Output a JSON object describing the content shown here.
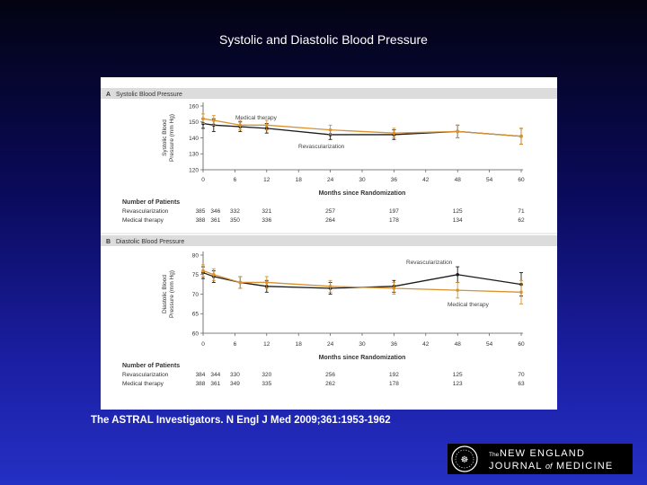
{
  "slide": {
    "title": "Systolic and Diastolic Blood Pressure",
    "citation": "The ASTRAL Investigators. N Engl J Med 2009;361:1953-1962",
    "logo": {
      "the": "The",
      "line1": "NEW ENGLAND",
      "line2_a": "JOURNAL",
      "line2_of": "of",
      "line2_b": "MEDICINE"
    }
  },
  "colors": {
    "revascularization": "#1a1a1a",
    "medical": "#d9922e",
    "panel_header": "#dcdcdc"
  },
  "chart_data": [
    {
      "type": "line",
      "panel_letter": "A",
      "title": "Systolic Blood Pressure",
      "ylabel_line1": "Systolic Blood",
      "ylabel_line2": "Pressure (mm Hg)",
      "xlabel": "Months since Randomization",
      "xlim": [
        0,
        60
      ],
      "ylim": [
        120,
        160
      ],
      "x_ticks": [
        "0",
        "6",
        "12",
        "18",
        "24",
        "30",
        "36",
        "42",
        "48",
        "54",
        "60"
      ],
      "y_ticks": [
        "120",
        "130",
        "140",
        "150",
        "160"
      ],
      "series": [
        {
          "name": "Revascularization",
          "color_key": "revascularization",
          "x": [
            0,
            2,
            7,
            12,
            24,
            36,
            48,
            60
          ],
          "y": [
            149,
            148,
            147,
            146,
            142,
            142,
            144,
            141
          ],
          "err": [
            3,
            4,
            3,
            3,
            3,
            3,
            4,
            5
          ]
        },
        {
          "name": "Medical therapy",
          "color_key": "medical",
          "x": [
            0,
            2,
            7,
            12,
            24,
            36,
            48,
            60
          ],
          "y": [
            152,
            151,
            148,
            148,
            145,
            143,
            144,
            141
          ],
          "err": [
            3,
            3,
            3,
            3,
            3,
            3,
            4,
            5
          ]
        }
      ],
      "annotations": [
        {
          "text": "Medical therapy",
          "series": "Medical therapy"
        },
        {
          "text": "Revascularization",
          "series": "Revascularization"
        }
      ],
      "at_risk": {
        "header": "Number of Patients",
        "x": [
          0,
          2,
          6,
          12,
          24,
          36,
          48,
          60
        ],
        "rows": [
          {
            "label": "Revascularization",
            "values": [
              "385",
              "346",
              "332",
              "321",
              "257",
              "197",
              "125",
              "71"
            ]
          },
          {
            "label": "Medical therapy",
            "values": [
              "388",
              "361",
              "350",
              "336",
              "264",
              "178",
              "134",
              "62"
            ]
          }
        ]
      }
    },
    {
      "type": "line",
      "panel_letter": "B",
      "title": "Diastolic Blood Pressure",
      "ylabel_line1": "Diastolic Blood",
      "ylabel_line2": "Pressure (mm Hg)",
      "xlabel": "Months since Randomization",
      "xlim": [
        0,
        60
      ],
      "ylim": [
        60,
        80
      ],
      "x_ticks": [
        "0",
        "6",
        "12",
        "18",
        "24",
        "30",
        "36",
        "42",
        "48",
        "54",
        "60"
      ],
      "y_ticks": [
        "60",
        "65",
        "70",
        "75",
        "80"
      ],
      "series": [
        {
          "name": "Revascularization",
          "color_key": "revascularization",
          "x": [
            0,
            2,
            7,
            12,
            24,
            36,
            48,
            60
          ],
          "y": [
            75.5,
            74.5,
            73,
            72,
            71.5,
            72,
            75,
            72.5
          ],
          "err": [
            1.5,
            1.5,
            1.5,
            1.5,
            1.5,
            1.5,
            2,
            3
          ]
        },
        {
          "name": "Medical therapy",
          "color_key": "medical",
          "x": [
            0,
            2,
            7,
            12,
            24,
            36,
            48,
            60
          ],
          "y": [
            76,
            75,
            73,
            73,
            72,
            71.5,
            71,
            70.5
          ],
          "err": [
            1.5,
            1.5,
            1.5,
            1.5,
            1.5,
            1.5,
            2,
            3
          ]
        }
      ],
      "annotations": [
        {
          "text": "Revascularization",
          "series": "Revascularization"
        },
        {
          "text": "Medical therapy",
          "series": "Medical therapy"
        }
      ],
      "at_risk": {
        "header": "Number of Patients",
        "x": [
          0,
          2,
          6,
          12,
          24,
          36,
          48,
          60
        ],
        "rows": [
          {
            "label": "Revascularization",
            "values": [
              "384",
              "344",
              "330",
              "320",
              "256",
              "192",
              "125",
              "70"
            ]
          },
          {
            "label": "Medical therapy",
            "values": [
              "388",
              "361",
              "349",
              "335",
              "262",
              "178",
              "123",
              "63"
            ]
          }
        ]
      }
    }
  ]
}
